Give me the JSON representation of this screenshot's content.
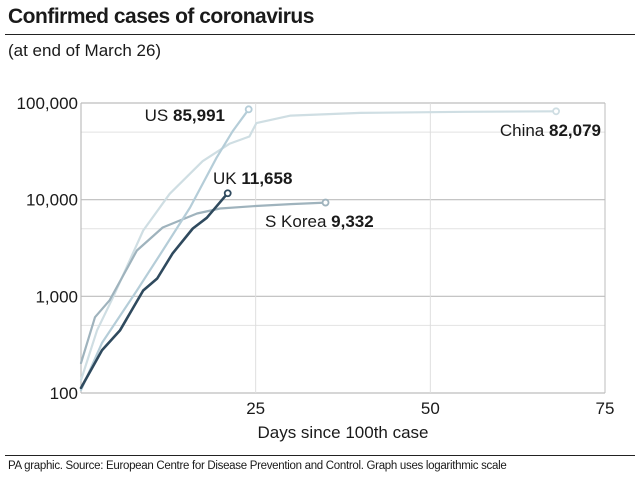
{
  "title": "Confirmed cases of coronavirus",
  "subtitle": "(at end of March 26)",
  "source": "PA graphic. Source: European Centre for Disease Prevention and Control. Graph uses logarithmic scale",
  "chart_data": {
    "type": "line",
    "title": "Confirmed cases of coronavirus",
    "subtitle": "(at end of March 26)",
    "xlabel": "Days since 100th case",
    "ylabel": "",
    "xlim": [
      0,
      75
    ],
    "ylim": [
      100,
      100000
    ],
    "yscale": "log",
    "grid": true,
    "xticks": [
      25,
      50,
      75
    ],
    "yticks": [
      100,
      1000,
      10000,
      100000
    ],
    "xtick_labels": [
      "25",
      "50",
      "75"
    ],
    "ytick_labels": [
      "100",
      "1,000",
      "10,000",
      "100,000"
    ],
    "series": [
      {
        "name": "China",
        "value_label": "82,079",
        "color": "#cfdee3",
        "x": [
          0,
          2.3,
          4.6,
          8.9,
          12.7,
          17.4,
          21.3,
          24.1,
          25.1,
          30,
          40,
          55,
          68
        ],
        "y": [
          136,
          446,
          980,
          4800,
          11500,
          25000,
          38000,
          45000,
          62000,
          74000,
          79000,
          81000,
          82079
        ]
      },
      {
        "name": "S Korea",
        "value_label": "9,332",
        "color": "#9fb3bd",
        "x": [
          0,
          2,
          4.1,
          8,
          11.7,
          16.6,
          19.9,
          25,
          30,
          35
        ],
        "y": [
          204,
          608,
          910,
          2980,
          5150,
          7200,
          8100,
          8600,
          9000,
          9332
        ]
      },
      {
        "name": "US",
        "value_label": "85,991",
        "color": "#b5cdd8",
        "x": [
          0,
          3,
          8,
          11.7,
          15.6,
          19.4,
          21.7,
          24
        ],
        "y": [
          107,
          330,
          1150,
          2980,
          8280,
          27100,
          51000,
          85991
        ]
      },
      {
        "name": "UK",
        "value_label": "11,658",
        "color": "#2f4a5e",
        "x": [
          0,
          3,
          5.6,
          8.9,
          10.9,
          13.1,
          16,
          18,
          21
        ],
        "y": [
          113,
          277,
          446,
          1150,
          1530,
          2770,
          5030,
          6500,
          11658
        ]
      }
    ]
  }
}
